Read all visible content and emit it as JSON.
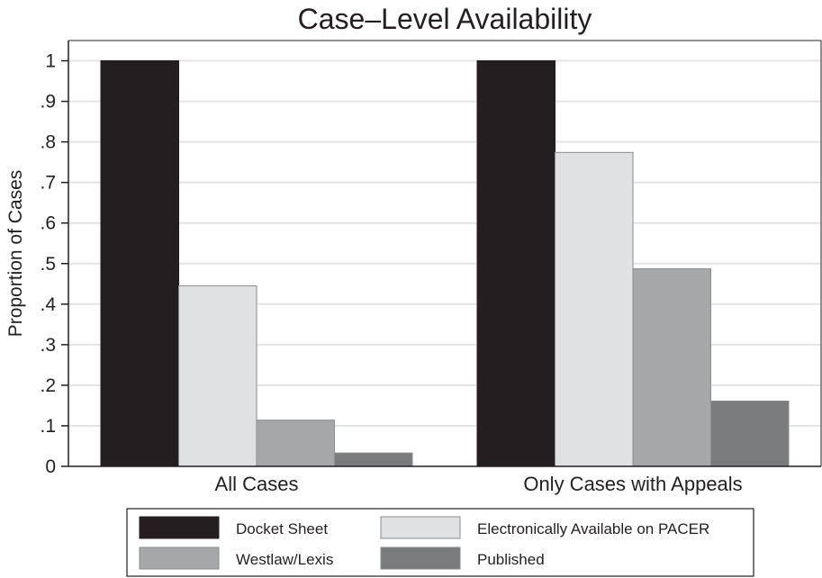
{
  "chart_data": {
    "type": "bar",
    "title": "Case–Level Availability",
    "xlabel": "",
    "ylabel": "Proportion of Cases",
    "ylim": [
      0,
      1.05
    ],
    "yticks": [
      0,
      0.1,
      0.2,
      0.3,
      0.4,
      0.5,
      0.6,
      0.7,
      0.8,
      0.9,
      1
    ],
    "ytick_labels": [
      "0",
      ".1",
      ".2",
      ".3",
      ".4",
      ".5",
      ".6",
      ".7",
      ".8",
      ".9",
      "1"
    ],
    "grid": true,
    "legend_position": "bottom",
    "categories": [
      "All Cases",
      "Only Cases with Appeals"
    ],
    "series": [
      {
        "name": "Docket Sheet",
        "values": [
          1.0,
          1.0
        ],
        "color": "#231f20"
      },
      {
        "name": "Electronically Available on PACER",
        "values": [
          0.445,
          0.774
        ],
        "color": "#e0e1e2"
      },
      {
        "name": "Westlaw/Lexis",
        "values": [
          0.114,
          0.487
        ],
        "color": "#a6a7a9"
      },
      {
        "name": "Published",
        "values": [
          0.033,
          0.161
        ],
        "color": "#7a7b7d"
      }
    ]
  }
}
